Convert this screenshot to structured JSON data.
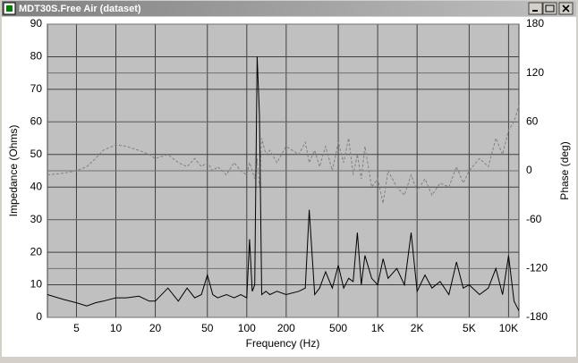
{
  "window": {
    "title": "MDT30S.Free Air (dataset)"
  },
  "chart_data": {
    "type": "line",
    "xlabel": "Frequency (Hz)",
    "ylabel": "Impedance (Ohms)",
    "y2label": "Phase (deg)",
    "xscale": "log",
    "grid": true,
    "xlim": [
      3,
      12000
    ],
    "xticks": [
      5,
      10,
      20,
      50,
      100,
      200,
      500,
      {
        "value": 1000,
        "label": "1K"
      },
      {
        "value": 2000,
        "label": "2K"
      },
      {
        "value": 5000,
        "label": "5K"
      },
      {
        "value": 10000,
        "label": "10K"
      }
    ],
    "ylim": [
      0,
      90
    ],
    "yticks": [
      0,
      10,
      20,
      30,
      40,
      50,
      60,
      70,
      80,
      90
    ],
    "y2lim": [
      -180,
      180
    ],
    "y2ticks": [
      -180,
      -120,
      -60,
      0,
      60,
      120,
      180
    ],
    "x": [
      3,
      4,
      5,
      6,
      7,
      8,
      10,
      12,
      15,
      18,
      20,
      25,
      30,
      35,
      40,
      45,
      50,
      55,
      60,
      70,
      80,
      90,
      100,
      105,
      110,
      115,
      120,
      125,
      130,
      140,
      150,
      170,
      200,
      250,
      280,
      300,
      330,
      360,
      400,
      450,
      500,
      550,
      600,
      650,
      700,
      750,
      800,
      900,
      1000,
      1100,
      1200,
      1400,
      1600,
      1800,
      2000,
      2300,
      2600,
      3000,
      3500,
      4000,
      4500,
      5000,
      6000,
      7000,
      8000,
      9000,
      10000,
      11000,
      12000
    ],
    "series": [
      {
        "name": "Impedance",
        "color": "#000000",
        "line_style": "solid",
        "axis": "y",
        "values": [
          7,
          5.5,
          4.5,
          3.5,
          4.5,
          5,
          6,
          6,
          6.5,
          5,
          5,
          9,
          5,
          9,
          6,
          7,
          13,
          7,
          6,
          7,
          6,
          7,
          6,
          24,
          8,
          10,
          80,
          62,
          7,
          8,
          7,
          8,
          7,
          8,
          9,
          33,
          7,
          9,
          14,
          9,
          16,
          9,
          12,
          11,
          26,
          10,
          19,
          12,
          10,
          18,
          12,
          15,
          10,
          26,
          8,
          13,
          9,
          11,
          7,
          17,
          9,
          10,
          7,
          9,
          15,
          7,
          19,
          5,
          2
        ]
      },
      {
        "name": "Phase",
        "color": "#808080",
        "line_style": "dashed",
        "axis": "y2",
        "values": [
          -5,
          -3,
          0,
          5,
          15,
          25,
          32,
          30,
          25,
          20,
          15,
          20,
          10,
          5,
          15,
          5,
          10,
          0,
          5,
          -5,
          10,
          0,
          -5,
          10,
          0,
          -10,
          15,
          -20,
          40,
          20,
          25,
          10,
          30,
          20,
          35,
          10,
          25,
          5,
          30,
          0,
          35,
          10,
          40,
          -5,
          20,
          -10,
          30,
          -20,
          -10,
          -40,
          0,
          -20,
          -30,
          -5,
          -25,
          -10,
          -30,
          -15,
          -20,
          5,
          -15,
          0,
          15,
          5,
          40,
          20,
          50,
          60,
          80
        ]
      }
    ]
  }
}
